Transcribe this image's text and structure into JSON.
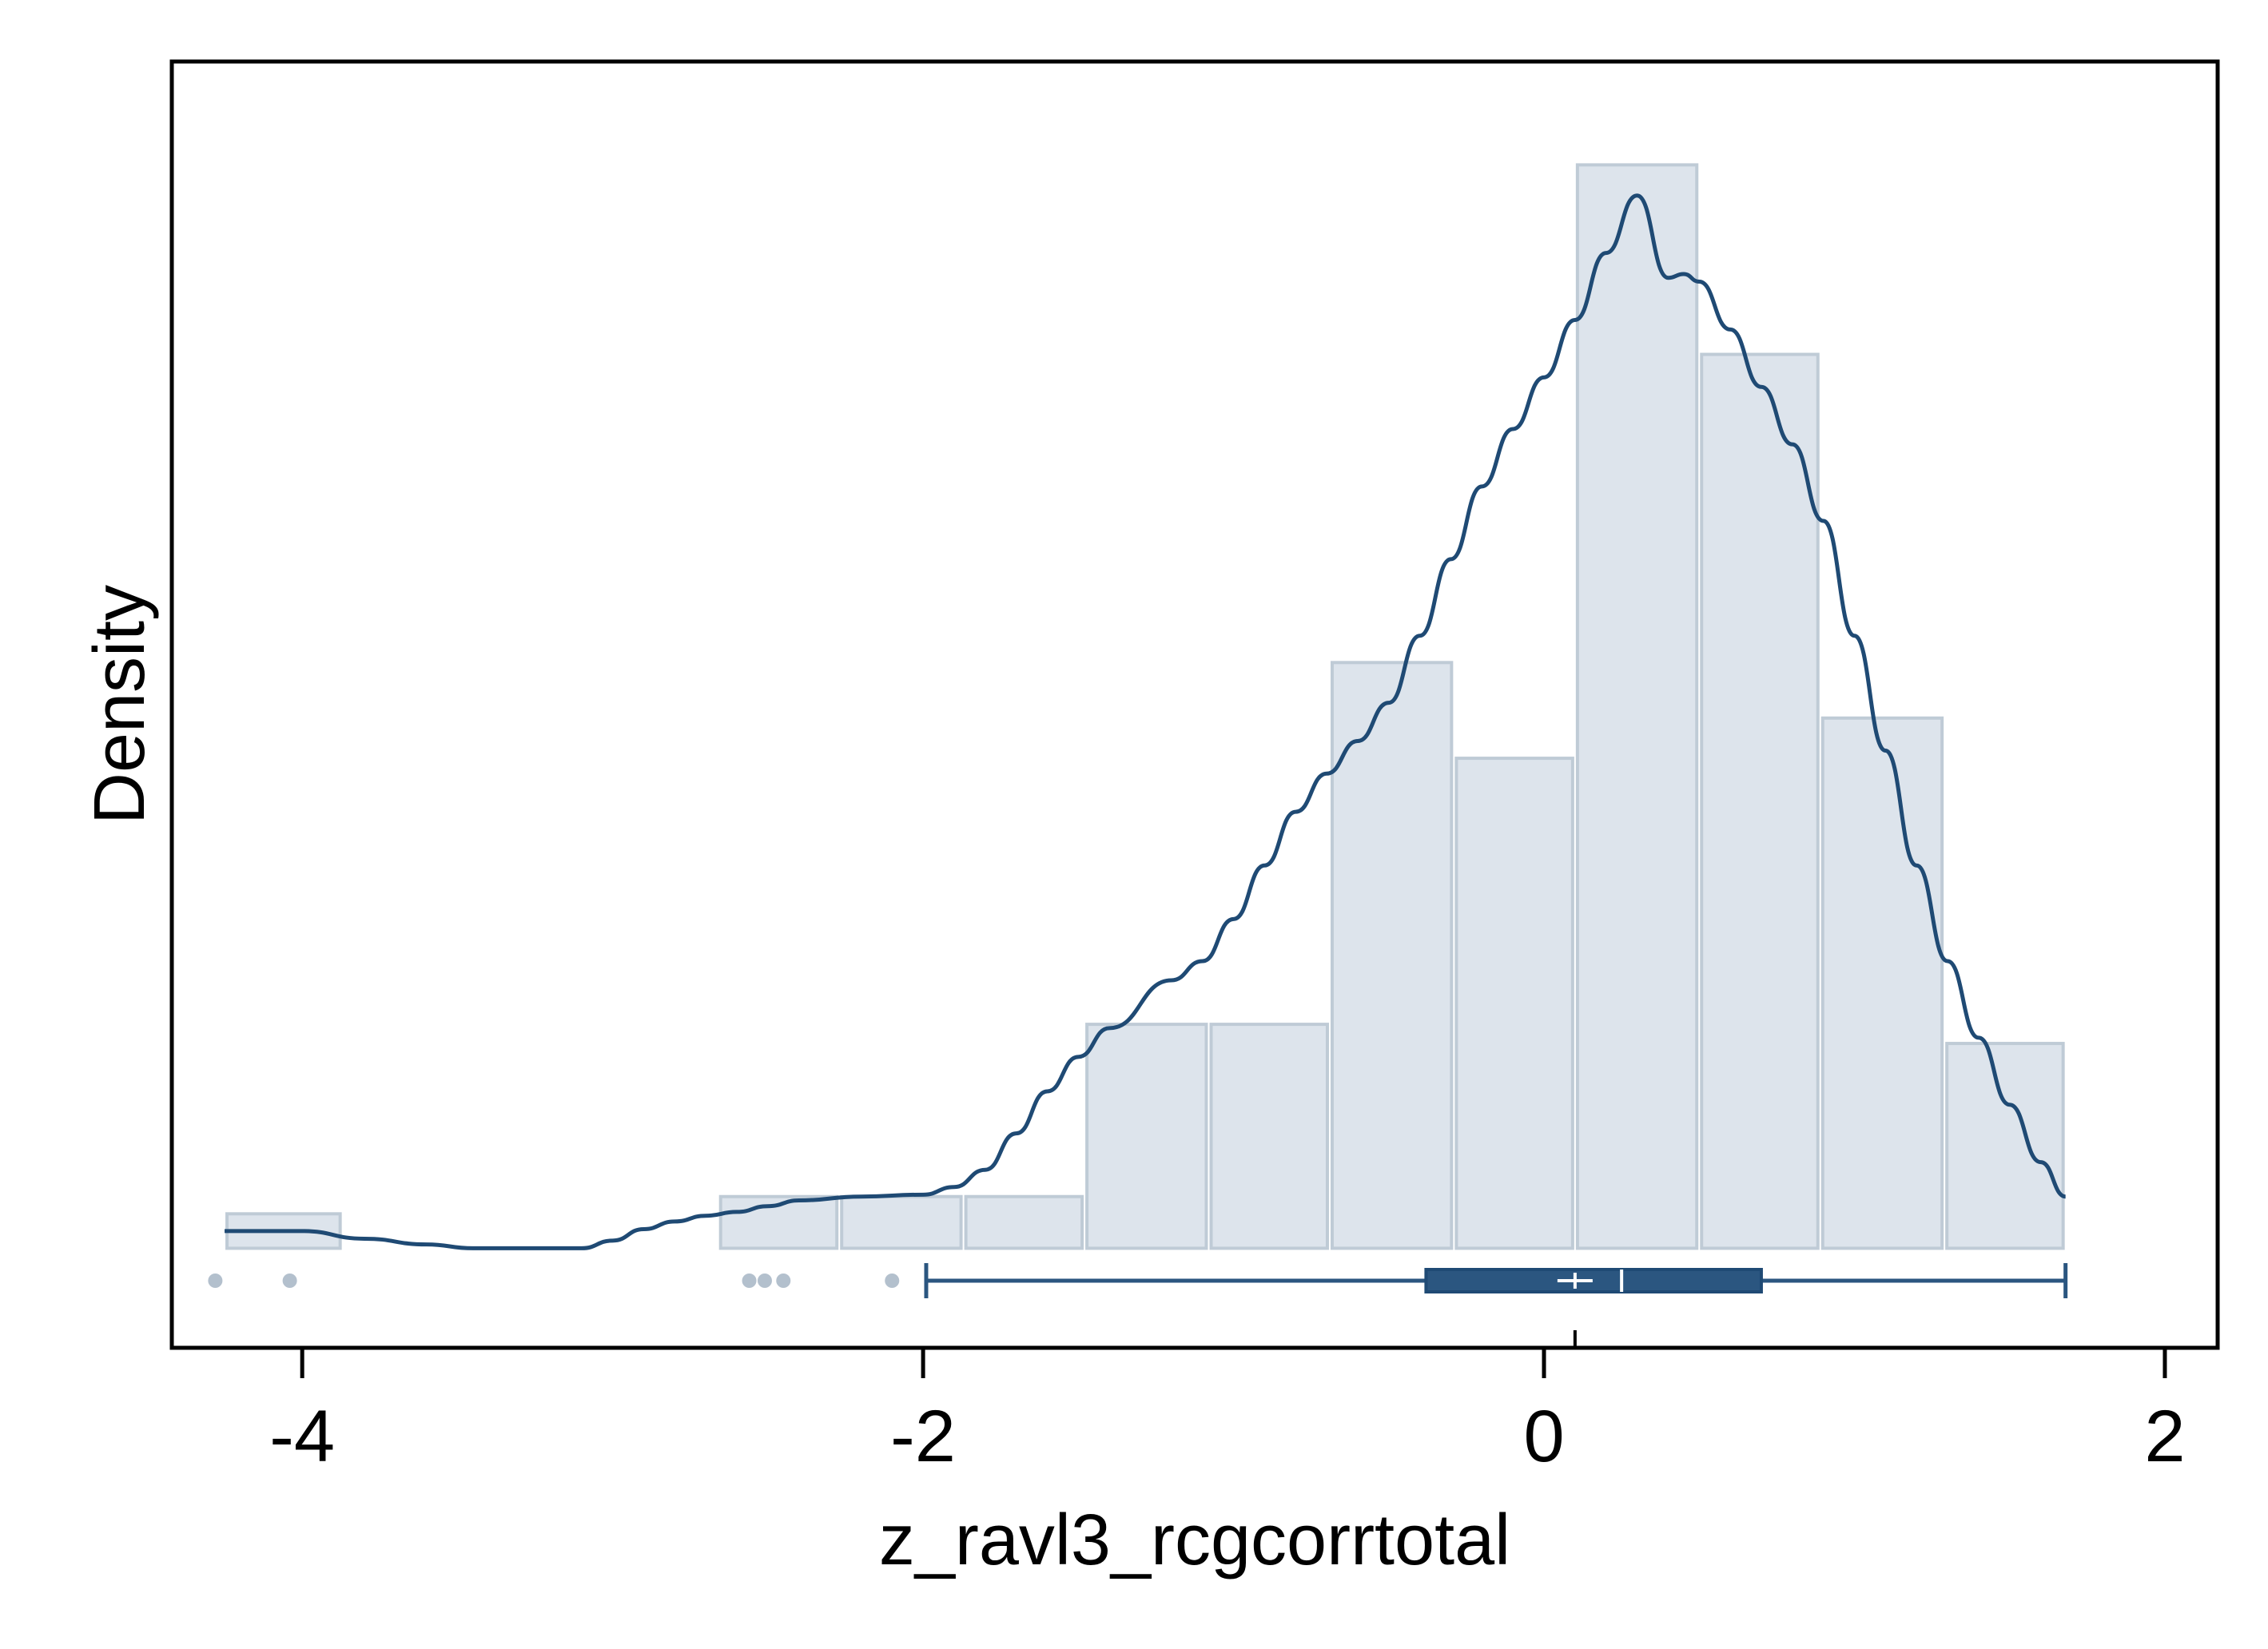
{
  "chart_data": {
    "type": "histogram",
    "title": "",
    "xlabel": "z_ravl3_rcgcorrtotal",
    "ylabel": "Density",
    "xlim": [
      -4.42,
      2.17
    ],
    "ylim": [
      -0.052,
      0.62
    ],
    "grid": false,
    "legend": "none",
    "xticks": [
      -4,
      -2,
      0,
      2
    ],
    "xtick_labels": [
      "-4",
      "-2",
      "0",
      "2"
    ],
    "histogram": {
      "bins": [
        {
          "x0": -4.25,
          "x1": -3.87,
          "density": 0.018
        },
        {
          "x0": -2.66,
          "x1": -2.27,
          "density": 0.027
        },
        {
          "x0": -2.27,
          "x1": -1.87,
          "density": 0.027
        },
        {
          "x0": -1.87,
          "x1": -1.48,
          "density": 0.027
        },
        {
          "x0": -1.48,
          "x1": -1.08,
          "density": 0.117
        },
        {
          "x0": -1.08,
          "x1": -0.69,
          "density": 0.117
        },
        {
          "x0": -0.69,
          "x1": -0.29,
          "density": 0.306
        },
        {
          "x0": -0.29,
          "x1": 0.1,
          "density": 0.256
        },
        {
          "x0": 0.1,
          "x1": 0.5,
          "density": 0.566
        },
        {
          "x0": 0.5,
          "x1": 0.89,
          "density": 0.467
        },
        {
          "x0": 0.89,
          "x1": 1.29,
          "density": 0.277
        },
        {
          "x0": 1.29,
          "x1": 1.68,
          "density": 0.107
        }
      ]
    },
    "density_curve": {
      "x": [
        -4.25,
        -4.0,
        -3.8,
        -3.6,
        -3.45,
        -3.3,
        -3.1,
        -3.0,
        -2.9,
        -2.8,
        -2.7,
        -2.6,
        -2.5,
        -2.4,
        -2.2,
        -2.0,
        -1.9,
        -1.8,
        -1.7,
        -1.6,
        -1.5,
        -1.4,
        -1.2,
        -1.1,
        -1.0,
        -0.9,
        -0.8,
        -0.7,
        -0.6,
        -0.5,
        -0.4,
        -0.3,
        -0.2,
        -0.1,
        0.0,
        0.1,
        0.2,
        0.3,
        0.4,
        0.45,
        0.5,
        0.6,
        0.7,
        0.8,
        0.9,
        1.0,
        1.1,
        1.2,
        1.3,
        1.4,
        1.5,
        1.6,
        1.68
      ],
      "y": [
        0.009,
        0.009,
        0.005,
        0.002,
        0.0,
        0.0,
        0.0,
        0.004,
        0.01,
        0.014,
        0.017,
        0.019,
        0.022,
        0.025,
        0.027,
        0.028,
        0.032,
        0.041,
        0.06,
        0.082,
        0.1,
        0.115,
        0.14,
        0.15,
        0.172,
        0.2,
        0.228,
        0.248,
        0.265,
        0.285,
        0.32,
        0.36,
        0.398,
        0.428,
        0.455,
        0.485,
        0.52,
        0.55,
        0.507,
        0.509,
        0.505,
        0.48,
        0.45,
        0.42,
        0.38,
        0.32,
        0.26,
        0.2,
        0.15,
        0.11,
        0.075,
        0.045,
        0.027
      ]
    },
    "boxplot": {
      "whisker_low": -1.99,
      "q1": -0.38,
      "median": 0.25,
      "mean": 0.1,
      "q3": 0.7,
      "whisker_high": 1.68,
      "outliers": [
        -4.28,
        -4.04,
        -2.56,
        -2.51,
        -2.45,
        -2.1
      ]
    },
    "colors": {
      "bar_fill": "#dde4ec",
      "bar_stroke": "#bfcbd6",
      "curve": "#1f4a74",
      "box": "#2b5680",
      "outlier": "#b3c0cd",
      "axes": "#000000"
    }
  }
}
